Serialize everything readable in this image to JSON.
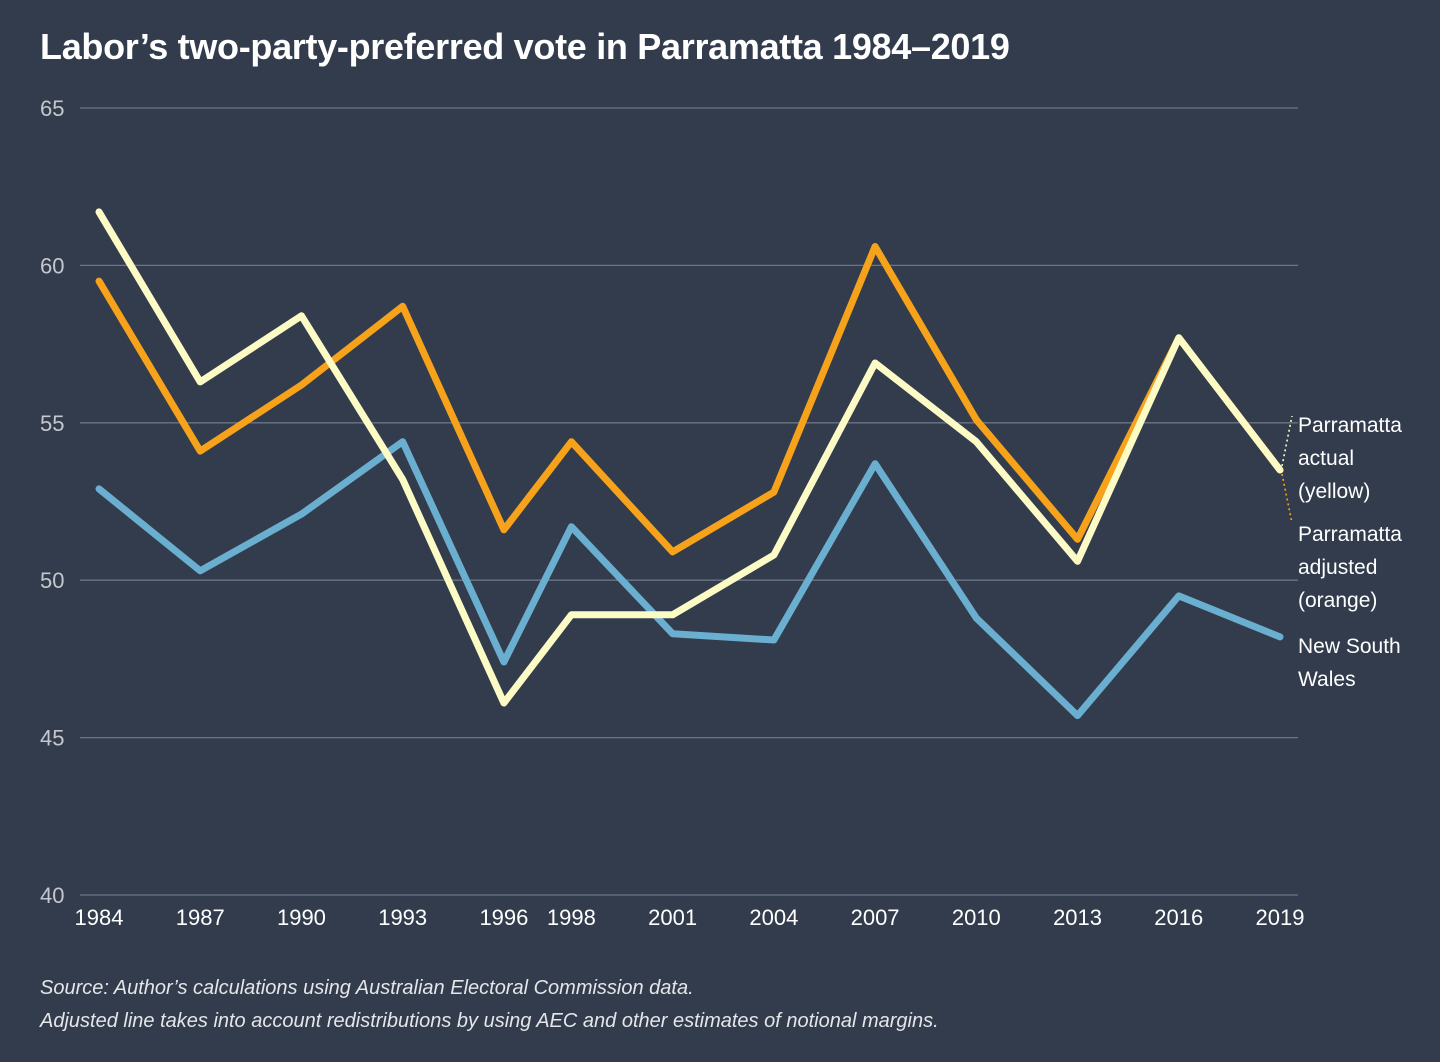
{
  "title": "Labor’s two-party-preferred vote in Parramatta 1984–2019",
  "footnotes": {
    "source": "Source: Author’s calculations using Australian Electoral Commission data.",
    "adjusted": "Adjusted line takes into account redistributions by using AEC and other estimates of notional margins."
  },
  "chart_data": {
    "type": "line",
    "title": "Labor’s two-party-preferred vote in Parramatta 1984–2019",
    "xlabel": "",
    "ylabel": "",
    "x": [
      1984,
      1987,
      1990,
      1993,
      1996,
      1998,
      2001,
      2004,
      2007,
      2010,
      2013,
      2016,
      2019
    ],
    "x_tick_labels": [
      "1984",
      "1987",
      "1990",
      "1993",
      "1996",
      "1998",
      "2001",
      "2004",
      "2007",
      "2010",
      "2013",
      "2016",
      "2019"
    ],
    "ylim": [
      40,
      65
    ],
    "y_ticks": [
      40,
      45,
      50,
      55,
      60,
      65
    ],
    "y_tick_labels": [
      "40",
      "45",
      "50",
      "55",
      "60",
      "65"
    ],
    "grid": "horizontal",
    "legend": "direct labels at right",
    "series": [
      {
        "key": "adjusted",
        "label_lines": [
          "Parramatta",
          "adjusted",
          "(orange)"
        ],
        "color": "#f7a21b",
        "values": [
          59.5,
          54.1,
          56.2,
          58.7,
          51.6,
          54.4,
          50.9,
          52.8,
          60.6,
          55.1,
          51.3,
          57.7,
          53.5
        ]
      },
      {
        "key": "nsw",
        "label_lines": [
          "New South",
          "Wales"
        ],
        "color": "#6aaed0",
        "values": [
          52.9,
          50.3,
          52.1,
          54.4,
          47.4,
          51.7,
          48.3,
          48.1,
          53.7,
          48.8,
          45.7,
          49.5,
          48.2
        ]
      },
      {
        "key": "actual",
        "label_lines": [
          "Parramatta",
          "actual",
          "(yellow)"
        ],
        "color": "#fdfbc5",
        "values": [
          61.7,
          56.3,
          58.4,
          53.2,
          46.1,
          48.9,
          48.9,
          50.8,
          56.9,
          54.4,
          50.6,
          57.7,
          53.5
        ]
      }
    ]
  },
  "colors": {
    "background": "#323c4c",
    "gridline": "#6b7482",
    "axis_text": "#c4c8ce"
  }
}
